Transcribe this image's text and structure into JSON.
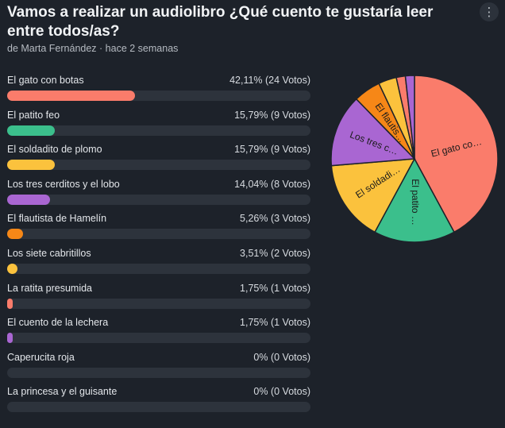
{
  "poll": {
    "title": "Vamos a realizar un audiolibro ¿Qué cuento te gustaría leer entre todos/as?",
    "byline": "de Marta Fernández · hace 2 semanas",
    "menu_icon": "vertical-ellipsis-icon"
  },
  "options": [
    {
      "label": "El gato con botas",
      "result": "42,11% (24 Votos)",
      "color": "#fa7c6b"
    },
    {
      "label": "El patito feo",
      "result": "15,79% (9 Votos)",
      "color": "#3bbf8c"
    },
    {
      "label": "El soldadito de plomo",
      "result": "15,79% (9 Votos)",
      "color": "#fbc23d"
    },
    {
      "label": "Los tres cerditos y el lobo",
      "result": "14,04% (8 Votos)",
      "color": "#a966d2"
    },
    {
      "label": "El flautista de Hamelín",
      "result": "5,26% (3 Votos)",
      "color": "#f68717"
    },
    {
      "label": "Los siete cabritillos",
      "result": "3,51% (2 Votos)",
      "color": "#fbc23d"
    },
    {
      "label": "La ratita presumida",
      "result": "1,75% (1 Votos)",
      "color": "#fa7c6b"
    },
    {
      "label": "El cuento de la lechera",
      "result": "1,75% (1 Votos)",
      "color": "#a966d2"
    },
    {
      "label": "Caperucita roja",
      "result": "0% (0 Votos)",
      "color": "#fa7c6b"
    },
    {
      "label": "La princesa y el guisante",
      "result": "0% (0 Votos)",
      "color": "#fa7c6b"
    }
  ],
  "chart_data": {
    "type": "pie",
    "slices": [
      {
        "category": "El gato con botas",
        "label": "El gato co…",
        "value": 24,
        "percent": 42.11,
        "color": "#fa7c6b"
      },
      {
        "category": "El patito feo",
        "label": "El patito …",
        "value": 9,
        "percent": 15.79,
        "color": "#3bbf8c"
      },
      {
        "category": "El soldadito de plomo",
        "label": "El soldadi…",
        "value": 9,
        "percent": 15.79,
        "color": "#fbc23d"
      },
      {
        "category": "Los tres cerditos y el lobo",
        "label": "Los tres c…",
        "value": 8,
        "percent": 14.04,
        "color": "#a966d2"
      },
      {
        "category": "El flautista de Hamelín",
        "label": "El flautis…",
        "value": 3,
        "percent": 5.26,
        "color": "#f68717"
      },
      {
        "category": "Los siete cabritillos",
        "label": "",
        "value": 2,
        "percent": 3.51,
        "color": "#fbc23d"
      },
      {
        "category": "La ratita presumida",
        "label": "",
        "value": 1,
        "percent": 1.75,
        "color": "#fa7c6b"
      },
      {
        "category": "El cuento de la lechera",
        "label": "",
        "value": 1,
        "percent": 1.75,
        "color": "#a966d2"
      }
    ]
  }
}
